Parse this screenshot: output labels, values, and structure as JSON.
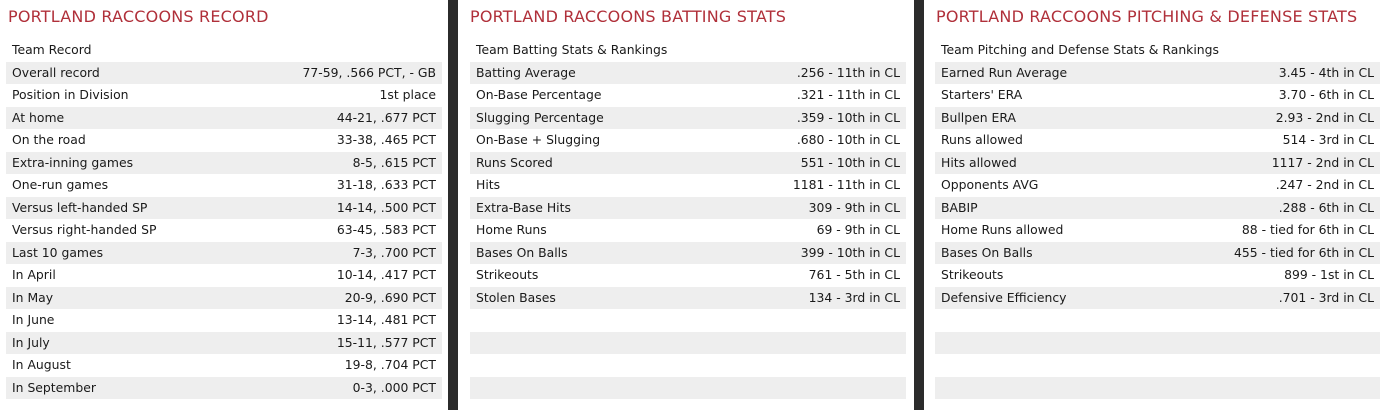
{
  "record": {
    "title": "PORTLAND RACCOONS RECORD",
    "header": "Team Record",
    "rows": [
      {
        "label": "Overall record",
        "value": "77-59, .566 PCT, - GB"
      },
      {
        "label": "Position in Division",
        "value": "1st place"
      },
      {
        "label": "At home",
        "value": "44-21, .677 PCT"
      },
      {
        "label": "On the road",
        "value": "33-38, .465 PCT"
      },
      {
        "label": "Extra-inning games",
        "value": "8-5, .615 PCT"
      },
      {
        "label": "One-run games",
        "value": "31-18, .633 PCT"
      },
      {
        "label": "Versus left-handed SP",
        "value": "14-14, .500 PCT"
      },
      {
        "label": "Versus right-handed SP",
        "value": "63-45, .583 PCT"
      },
      {
        "label": "Last 10 games",
        "value": "7-3, .700 PCT"
      },
      {
        "label": "In April",
        "value": "10-14, .417 PCT"
      },
      {
        "label": "In May",
        "value": "20-9, .690 PCT"
      },
      {
        "label": "In June",
        "value": "13-14, .481 PCT"
      },
      {
        "label": "In July",
        "value": "15-11, .577 PCT"
      },
      {
        "label": "In August",
        "value": "19-8, .704 PCT"
      },
      {
        "label": "In September",
        "value": "0-3, .000 PCT"
      }
    ]
  },
  "batting": {
    "title": "PORTLAND RACCOONS BATTING STATS",
    "header": "Team Batting Stats & Rankings",
    "rows": [
      {
        "label": "Batting Average",
        "value": ".256 - 11th  in CL"
      },
      {
        "label": "On-Base Percentage",
        "value": ".321 - 11th  in CL"
      },
      {
        "label": "Slugging Percentage",
        "value": ".359 - 10th  in CL"
      },
      {
        "label": "On-Base + Slugging",
        "value": ".680 - 10th  in CL"
      },
      {
        "label": "Runs Scored",
        "value": "551 - 10th  in CL"
      },
      {
        "label": "Hits",
        "value": "1181 - 11th  in CL"
      },
      {
        "label": "Extra-Base Hits",
        "value": "309 - 9th  in CL"
      },
      {
        "label": "Home Runs",
        "value": "69 - 9th  in CL"
      },
      {
        "label": "Bases On Balls",
        "value": "399 - 10th  in CL"
      },
      {
        "label": "Strikeouts",
        "value": "761 - 5th  in CL"
      },
      {
        "label": "Stolen Bases",
        "value": "134 - 3rd  in CL"
      }
    ]
  },
  "pitching": {
    "title": "PORTLAND RACCOONS PITCHING & DEFENSE STATS",
    "header": "Team Pitching and Defense Stats & Rankings",
    "rows": [
      {
        "label": "Earned Run Average",
        "value": "3.45 - 4th  in CL"
      },
      {
        "label": "Starters' ERA",
        "value": "3.70 - 6th  in CL"
      },
      {
        "label": "Bullpen ERA",
        "value": "2.93 - 2nd  in CL"
      },
      {
        "label": "Runs allowed",
        "value": "514 - 3rd  in CL"
      },
      {
        "label": "Hits allowed",
        "value": "1117 - 2nd  in CL"
      },
      {
        "label": "Opponents AVG",
        "value": ".247 - 2nd  in CL"
      },
      {
        "label": "BABIP",
        "value": ".288 - 6th  in CL"
      },
      {
        "label": "Home Runs allowed",
        "value": "88 -  tied for 6th  in CL"
      },
      {
        "label": "Bases On Balls",
        "value": "455 -  tied for 6th  in CL"
      },
      {
        "label": "Strikeouts",
        "value": "899 - 1st  in CL"
      },
      {
        "label": "Defensive Efficiency",
        "value": ".701 - 3rd  in CL"
      }
    ]
  }
}
